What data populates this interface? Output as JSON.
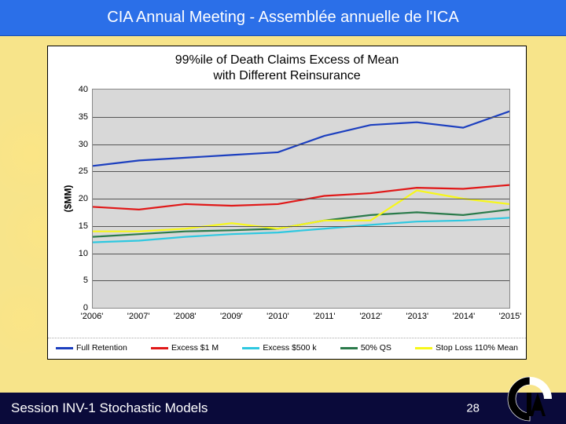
{
  "header": {
    "title": "CIA Annual Meeting - Assemblée annuelle de l'ICA"
  },
  "footer": {
    "session": "Session INV-1 Stochastic Models",
    "page": "28"
  },
  "chart": {
    "type": "line",
    "title_line1": "99%ile of Death Claims Excess of Mean",
    "title_line2": "with Different Reinsurance",
    "title_fontsize": 16,
    "y_axis_label": "($MM)",
    "label_fontsize": 12,
    "ylim": [
      0,
      40
    ],
    "ytick_step": 5,
    "yticks": [
      0,
      5,
      10,
      15,
      20,
      25,
      30,
      35,
      40
    ],
    "categories": [
      "'2006'",
      "'2007'",
      "'2008'",
      "'2009'",
      "'2010'",
      "'2011'",
      "'2012'",
      "'2013'",
      "'2014'",
      "'2015'"
    ],
    "background_color": "#ffffff",
    "plot_bg_color": "#d8d8d8",
    "grid_color": "#555555",
    "line_width": 2.2,
    "series": [
      {
        "name": "Full Retention",
        "color": "#1c3fbf",
        "values": [
          26.0,
          27.0,
          27.5,
          28.0,
          28.5,
          31.5,
          33.5,
          34.0,
          33.0,
          36.0
        ]
      },
      {
        "name": "Excess $1 M",
        "color": "#e01818",
        "values": [
          18.5,
          18.0,
          19.0,
          18.7,
          19.0,
          20.5,
          21.0,
          22.0,
          21.8,
          22.5
        ]
      },
      {
        "name": "Excess $500 k",
        "color": "#2ec8e0",
        "values": [
          12.0,
          12.3,
          13.0,
          13.5,
          13.8,
          14.5,
          15.2,
          15.8,
          16.0,
          16.5
        ]
      },
      {
        "name": "50% QS",
        "color": "#2a7a4a",
        "values": [
          13.0,
          13.5,
          14.0,
          14.2,
          14.5,
          16.0,
          17.0,
          17.5,
          17.0,
          18.0
        ]
      },
      {
        "name": "Stop Loss 110% Mean",
        "color": "#f7f71a",
        "values": [
          14.0,
          14.0,
          14.5,
          15.5,
          14.5,
          16.0,
          16.0,
          21.5,
          20.0,
          19.0
        ]
      }
    ]
  }
}
